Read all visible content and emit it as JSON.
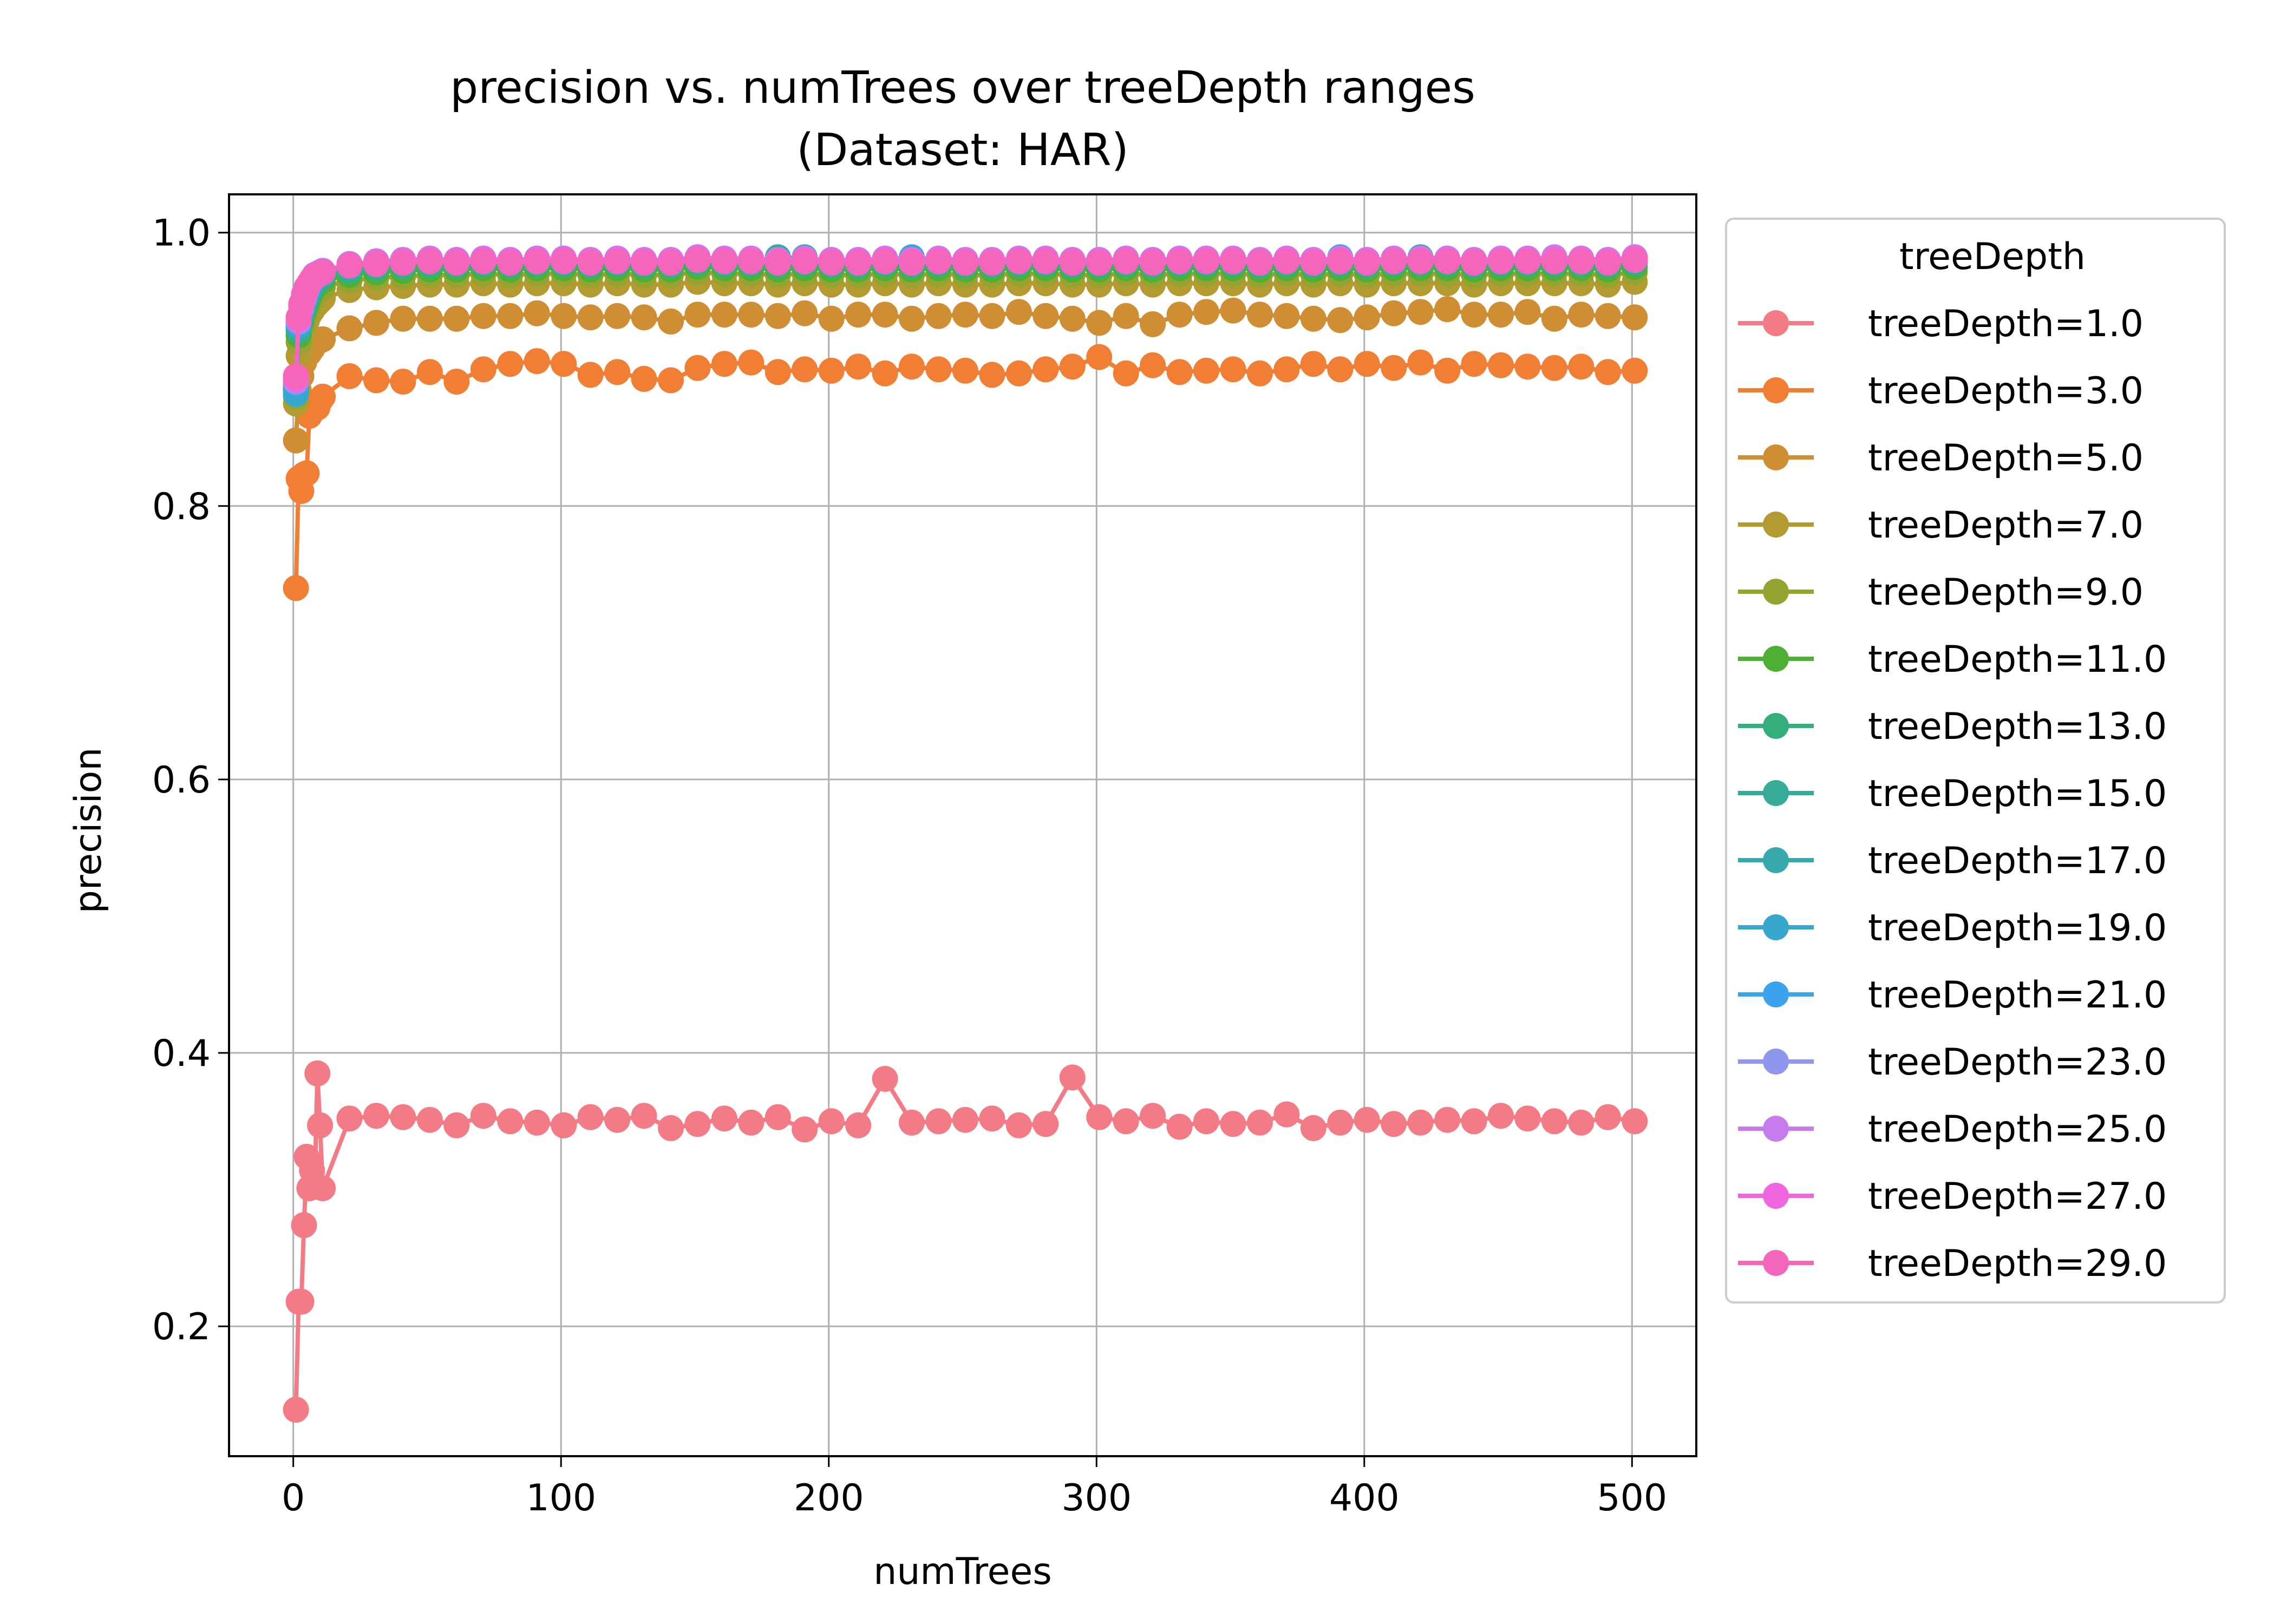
{
  "chart_data": {
    "type": "line",
    "title_line1": "precision vs. numTrees over treeDepth ranges",
    "title_line2": "(Dataset: HAR)",
    "xlabel": "numTrees",
    "ylabel": "precision",
    "xlim": [
      -24,
      524
    ],
    "ylim": [
      0.105,
      1.028
    ],
    "xticks": [
      0,
      100,
      200,
      300,
      400,
      500
    ],
    "xtick_labels": [
      "0",
      "100",
      "200",
      "300",
      "400",
      "500"
    ],
    "yticks": [
      0.2,
      0.4,
      0.6,
      0.8,
      1.0
    ],
    "ytick_labels": [
      "0.2",
      "0.4",
      "0.6",
      "0.8",
      "1.0"
    ],
    "grid": true,
    "legend_title": "treeDepth",
    "legend_position": "outside right",
    "x": [
      1,
      2,
      3,
      4,
      5,
      6,
      7,
      8,
      9,
      10,
      11,
      21,
      31,
      41,
      51,
      61,
      71,
      81,
      91,
      101,
      111,
      121,
      131,
      141,
      151,
      161,
      171,
      181,
      191,
      201,
      211,
      221,
      231,
      241,
      251,
      261,
      271,
      281,
      291,
      301,
      311,
      321,
      331,
      341,
      351,
      361,
      371,
      381,
      391,
      401,
      411,
      421,
      431,
      441,
      451,
      461,
      471,
      481,
      491,
      501
    ],
    "series": [
      {
        "name": "treeDepth=1.0",
        "color": "#f37b85",
        "values": [
          0.139,
          0.218,
          0.218,
          0.274,
          0.324,
          0.301,
          0.314,
          0.303,
          0.385,
          0.347,
          0.301,
          0.352,
          0.354,
          0.353,
          0.351,
          0.347,
          0.354,
          0.35,
          0.349,
          0.347,
          0.353,
          0.351,
          0.354,
          0.345,
          0.348,
          0.352,
          0.349,
          0.353,
          0.344,
          0.35,
          0.347,
          0.381,
          0.349,
          0.35,
          0.351,
          0.352,
          0.347,
          0.348,
          0.382,
          0.353,
          0.35,
          0.354,
          0.346,
          0.35,
          0.348,
          0.349,
          0.355,
          0.345,
          0.349,
          0.351,
          0.348,
          0.349,
          0.351,
          0.35,
          0.354,
          0.352,
          0.35,
          0.349,
          0.353,
          0.35
        ]
      },
      {
        "name": "treeDepth=3.0",
        "color": "#f17e35",
        "values": [
          0.74,
          0.82,
          0.811,
          0.823,
          0.824,
          0.866,
          0.87,
          0.874,
          0.872,
          0.877,
          0.88,
          0.895,
          0.892,
          0.891,
          0.898,
          0.891,
          0.9,
          0.904,
          0.906,
          0.904,
          0.896,
          0.898,
          0.893,
          0.892,
          0.901,
          0.904,
          0.905,
          0.898,
          0.9,
          0.899,
          0.902,
          0.897,
          0.902,
          0.9,
          0.899,
          0.896,
          0.897,
          0.9,
          0.902,
          0.909,
          0.897,
          0.903,
          0.898,
          0.899,
          0.9,
          0.897,
          0.9,
          0.904,
          0.9,
          0.904,
          0.901,
          0.905,
          0.899,
          0.904,
          0.903,
          0.902,
          0.901,
          0.902,
          0.898,
          0.899
        ]
      },
      {
        "name": "treeDepth=5.0",
        "color": "#cf8e33",
        "values": [
          0.848,
          0.885,
          0.895,
          0.905,
          0.91,
          0.912,
          0.915,
          0.918,
          0.92,
          0.921,
          0.922,
          0.93,
          0.934,
          0.937,
          0.937,
          0.937,
          0.939,
          0.939,
          0.941,
          0.939,
          0.938,
          0.939,
          0.938,
          0.935,
          0.94,
          0.94,
          0.94,
          0.939,
          0.941,
          0.937,
          0.94,
          0.94,
          0.937,
          0.939,
          0.94,
          0.939,
          0.942,
          0.939,
          0.937,
          0.934,
          0.939,
          0.933,
          0.94,
          0.942,
          0.943,
          0.94,
          0.939,
          0.937,
          0.936,
          0.938,
          0.941,
          0.942,
          0.944,
          0.94,
          0.94,
          0.942,
          0.937,
          0.94,
          0.939,
          0.938
        ]
      },
      {
        "name": "treeDepth=7.0",
        "color": "#b39a31",
        "values": [
          0.875,
          0.91,
          0.92,
          0.928,
          0.935,
          0.94,
          0.943,
          0.946,
          0.948,
          0.95,
          0.952,
          0.958,
          0.96,
          0.961,
          0.962,
          0.962,
          0.963,
          0.962,
          0.963,
          0.963,
          0.962,
          0.963,
          0.962,
          0.962,
          0.964,
          0.963,
          0.963,
          0.962,
          0.963,
          0.962,
          0.962,
          0.963,
          0.962,
          0.963,
          0.962,
          0.962,
          0.963,
          0.963,
          0.962,
          0.962,
          0.963,
          0.962,
          0.963,
          0.963,
          0.963,
          0.962,
          0.963,
          0.962,
          0.963,
          0.962,
          0.963,
          0.963,
          0.963,
          0.962,
          0.963,
          0.963,
          0.963,
          0.963,
          0.962,
          0.964
        ]
      },
      {
        "name": "treeDepth=9.0",
        "color": "#95a331",
        "values": [
          0.88,
          0.92,
          0.93,
          0.937,
          0.943,
          0.948,
          0.952,
          0.955,
          0.957,
          0.959,
          0.96,
          0.965,
          0.967,
          0.968,
          0.969,
          0.969,
          0.97,
          0.969,
          0.97,
          0.97,
          0.969,
          0.97,
          0.969,
          0.969,
          0.971,
          0.97,
          0.97,
          0.969,
          0.97,
          0.969,
          0.969,
          0.97,
          0.969,
          0.97,
          0.969,
          0.969,
          0.97,
          0.97,
          0.969,
          0.969,
          0.97,
          0.969,
          0.97,
          0.97,
          0.97,
          0.969,
          0.97,
          0.969,
          0.97,
          0.969,
          0.97,
          0.97,
          0.97,
          0.969,
          0.97,
          0.97,
          0.97,
          0.97,
          0.969,
          0.971
        ]
      },
      {
        "name": "treeDepth=11.0",
        "color": "#4eb032",
        "values": [
          0.884,
          0.925,
          0.935,
          0.942,
          0.948,
          0.953,
          0.957,
          0.96,
          0.962,
          0.964,
          0.965,
          0.969,
          0.971,
          0.972,
          0.973,
          0.973,
          0.974,
          0.973,
          0.974,
          0.974,
          0.973,
          0.974,
          0.973,
          0.973,
          0.975,
          0.974,
          0.974,
          0.973,
          0.974,
          0.973,
          0.973,
          0.974,
          0.973,
          0.974,
          0.973,
          0.973,
          0.974,
          0.974,
          0.973,
          0.973,
          0.974,
          0.973,
          0.974,
          0.974,
          0.974,
          0.973,
          0.974,
          0.973,
          0.974,
          0.973,
          0.974,
          0.974,
          0.974,
          0.973,
          0.974,
          0.974,
          0.974,
          0.974,
          0.973,
          0.975
        ]
      },
      {
        "name": "treeDepth=13.0",
        "color": "#34ae7c",
        "values": [
          0.886,
          0.928,
          0.938,
          0.945,
          0.951,
          0.956,
          0.96,
          0.963,
          0.965,
          0.967,
          0.968,
          0.972,
          0.974,
          0.975,
          0.976,
          0.976,
          0.977,
          0.976,
          0.977,
          0.977,
          0.976,
          0.977,
          0.976,
          0.976,
          0.978,
          0.977,
          0.977,
          0.976,
          0.977,
          0.976,
          0.976,
          0.977,
          0.976,
          0.977,
          0.976,
          0.976,
          0.977,
          0.977,
          0.976,
          0.976,
          0.977,
          0.976,
          0.977,
          0.977,
          0.977,
          0.976,
          0.977,
          0.976,
          0.977,
          0.976,
          0.977,
          0.977,
          0.977,
          0.976,
          0.977,
          0.977,
          0.977,
          0.977,
          0.976,
          0.978
        ]
      },
      {
        "name": "treeDepth=15.0",
        "color": "#35ab98",
        "values": [
          0.887,
          0.93,
          0.94,
          0.947,
          0.953,
          0.958,
          0.962,
          0.964,
          0.966,
          0.968,
          0.969,
          0.974,
          0.976,
          0.977,
          0.981,
          0.977,
          0.978,
          0.977,
          0.978,
          0.978,
          0.977,
          0.978,
          0.977,
          0.977,
          0.979,
          0.978,
          0.978,
          0.982,
          0.981,
          0.977,
          0.977,
          0.978,
          0.977,
          0.978,
          0.977,
          0.977,
          0.978,
          0.978,
          0.977,
          0.977,
          0.978,
          0.977,
          0.978,
          0.978,
          0.978,
          0.977,
          0.978,
          0.977,
          0.978,
          0.977,
          0.978,
          0.982,
          0.981,
          0.977,
          0.978,
          0.978,
          0.978,
          0.978,
          0.977,
          0.979
        ]
      },
      {
        "name": "treeDepth=17.0",
        "color": "#36a9ac",
        "values": [
          0.888,
          0.932,
          0.942,
          0.949,
          0.955,
          0.96,
          0.963,
          0.966,
          0.968,
          0.969,
          0.97,
          0.975,
          0.977,
          0.978,
          0.979,
          0.978,
          0.979,
          0.978,
          0.979,
          0.979,
          0.978,
          0.979,
          0.978,
          0.978,
          0.98,
          0.979,
          0.979,
          0.978,
          0.982,
          0.978,
          0.978,
          0.979,
          0.978,
          0.979,
          0.978,
          0.978,
          0.979,
          0.979,
          0.978,
          0.978,
          0.979,
          0.978,
          0.979,
          0.979,
          0.979,
          0.978,
          0.979,
          0.978,
          0.979,
          0.978,
          0.979,
          0.979,
          0.979,
          0.978,
          0.979,
          0.979,
          0.979,
          0.979,
          0.978,
          0.98
        ]
      },
      {
        "name": "treeDepth=19.0",
        "color": "#38a7d0",
        "values": [
          0.882,
          0.933,
          0.943,
          0.95,
          0.956,
          0.961,
          0.964,
          0.967,
          0.969,
          0.97,
          0.971,
          0.976,
          0.978,
          0.979,
          0.98,
          0.979,
          0.98,
          0.979,
          0.98,
          0.98,
          0.979,
          0.98,
          0.979,
          0.979,
          0.981,
          0.98,
          0.98,
          0.979,
          0.98,
          0.979,
          0.979,
          0.98,
          0.982,
          0.98,
          0.979,
          0.979,
          0.98,
          0.98,
          0.979,
          0.979,
          0.98,
          0.979,
          0.98,
          0.98,
          0.98,
          0.979,
          0.98,
          0.979,
          0.982,
          0.979,
          0.98,
          0.98,
          0.98,
          0.979,
          0.98,
          0.98,
          0.98,
          0.98,
          0.979,
          0.981
        ]
      },
      {
        "name": "treeDepth=21.0",
        "color": "#3ba3ec",
        "values": [
          0.89,
          0.934,
          0.944,
          0.951,
          0.957,
          0.962,
          0.965,
          0.968,
          0.97,
          0.971,
          0.972,
          0.977,
          0.979,
          0.98,
          0.981,
          0.98,
          0.981,
          0.98,
          0.981,
          0.981,
          0.98,
          0.981,
          0.98,
          0.98,
          0.982,
          0.981,
          0.981,
          0.98,
          0.981,
          0.98,
          0.98,
          0.981,
          0.98,
          0.981,
          0.98,
          0.98,
          0.981,
          0.981,
          0.98,
          0.98,
          0.981,
          0.98,
          0.981,
          0.981,
          0.981,
          0.98,
          0.981,
          0.98,
          0.981,
          0.98,
          0.981,
          0.981,
          0.981,
          0.98,
          0.981,
          0.981,
          0.981,
          0.981,
          0.98,
          0.982
        ]
      },
      {
        "name": "treeDepth=23.0",
        "color": "#8e97ec",
        "values": [
          0.891,
          0.935,
          0.945,
          0.952,
          0.958,
          0.963,
          0.966,
          0.969,
          0.97,
          0.971,
          0.972,
          0.977,
          0.979,
          0.98,
          0.981,
          0.98,
          0.981,
          0.98,
          0.981,
          0.981,
          0.98,
          0.981,
          0.98,
          0.98,
          0.982,
          0.981,
          0.981,
          0.98,
          0.981,
          0.98,
          0.98,
          0.981,
          0.98,
          0.981,
          0.98,
          0.98,
          0.981,
          0.981,
          0.98,
          0.98,
          0.981,
          0.98,
          0.981,
          0.981,
          0.981,
          0.98,
          0.981,
          0.98,
          0.981,
          0.98,
          0.981,
          0.981,
          0.981,
          0.98,
          0.981,
          0.981,
          0.981,
          0.981,
          0.98,
          0.982
        ]
      },
      {
        "name": "treeDepth=25.0",
        "color": "#c77ced",
        "values": [
          0.892,
          0.936,
          0.946,
          0.953,
          0.959,
          0.963,
          0.966,
          0.969,
          0.97,
          0.971,
          0.972,
          0.977,
          0.979,
          0.98,
          0.981,
          0.98,
          0.981,
          0.98,
          0.981,
          0.981,
          0.98,
          0.981,
          0.98,
          0.98,
          0.982,
          0.981,
          0.981,
          0.98,
          0.981,
          0.98,
          0.98,
          0.981,
          0.98,
          0.981,
          0.98,
          0.98,
          0.981,
          0.981,
          0.98,
          0.98,
          0.981,
          0.98,
          0.981,
          0.981,
          0.981,
          0.98,
          0.981,
          0.98,
          0.981,
          0.98,
          0.981,
          0.981,
          0.981,
          0.98,
          0.981,
          0.981,
          0.982,
          0.981,
          0.98,
          0.982
        ]
      },
      {
        "name": "treeDepth=27.0",
        "color": "#f066e0",
        "values": [
          0.893,
          0.937,
          0.947,
          0.954,
          0.96,
          0.963,
          0.966,
          0.968,
          0.969,
          0.97,
          0.971,
          0.976,
          0.978,
          0.979,
          0.98,
          0.979,
          0.98,
          0.979,
          0.98,
          0.98,
          0.979,
          0.98,
          0.979,
          0.979,
          0.981,
          0.98,
          0.98,
          0.979,
          0.98,
          0.979,
          0.979,
          0.98,
          0.979,
          0.98,
          0.979,
          0.979,
          0.98,
          0.98,
          0.979,
          0.979,
          0.98,
          0.979,
          0.98,
          0.98,
          0.98,
          0.979,
          0.98,
          0.979,
          0.98,
          0.979,
          0.98,
          0.98,
          0.98,
          0.979,
          0.98,
          0.98,
          0.98,
          0.98,
          0.979,
          0.981
        ]
      },
      {
        "name": "treeDepth=29.0",
        "color": "#f565b9",
        "values": [
          0.895,
          0.938,
          0.948,
          0.955,
          0.96,
          0.963,
          0.966,
          0.968,
          0.969,
          0.97,
          0.971,
          0.976,
          0.977,
          0.978,
          0.979,
          0.978,
          0.979,
          0.978,
          0.979,
          0.979,
          0.978,
          0.979,
          0.978,
          0.978,
          0.98,
          0.979,
          0.979,
          0.978,
          0.979,
          0.978,
          0.978,
          0.979,
          0.978,
          0.979,
          0.978,
          0.978,
          0.979,
          0.979,
          0.978,
          0.978,
          0.979,
          0.978,
          0.979,
          0.979,
          0.979,
          0.978,
          0.979,
          0.978,
          0.979,
          0.978,
          0.979,
          0.979,
          0.979,
          0.978,
          0.979,
          0.979,
          0.979,
          0.979,
          0.978,
          0.98
        ]
      }
    ]
  }
}
